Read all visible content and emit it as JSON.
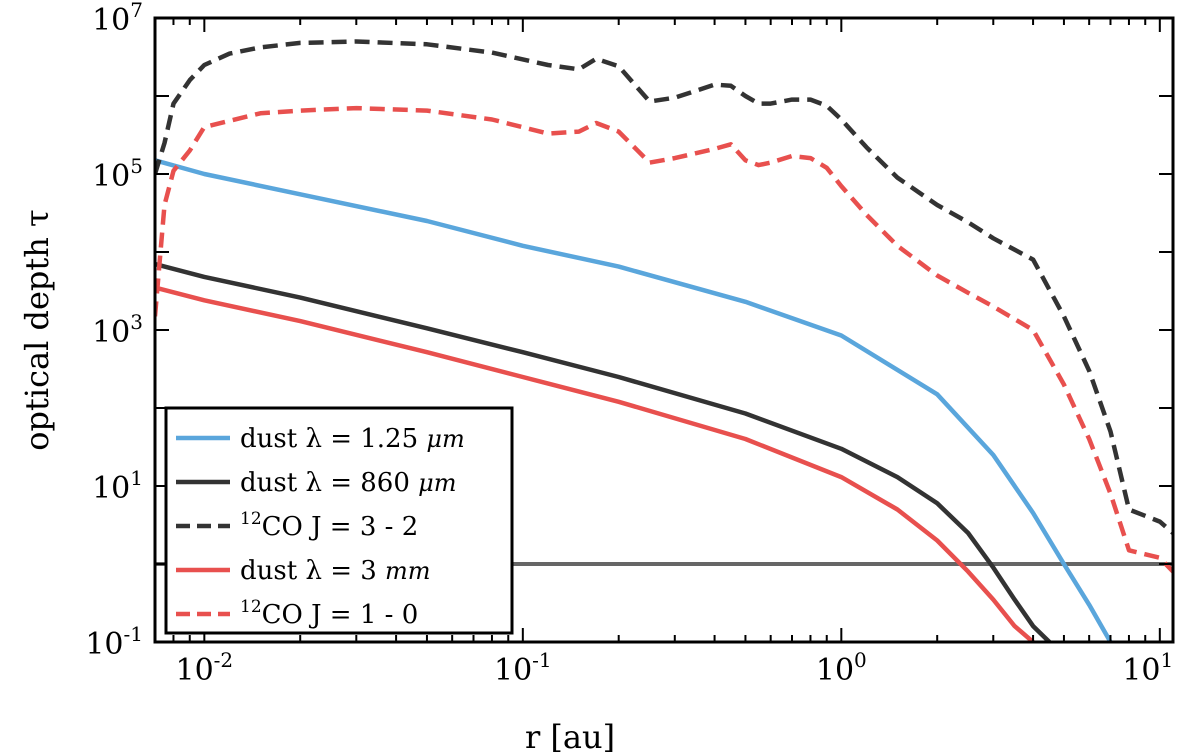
{
  "chart_data": {
    "type": "line",
    "title": "",
    "xlabel": "r [au]",
    "ylabel": "optical depth τ",
    "xscale": "log",
    "yscale": "log",
    "xlim": [
      0.007,
      11
    ],
    "ylim": [
      0.1,
      10000000
    ],
    "grid": false,
    "legend_location": "lower-left",
    "x_ticks": [
      {
        "value": 0.01,
        "base": "10",
        "exp": "-2"
      },
      {
        "value": 0.1,
        "base": "10",
        "exp": "-1"
      },
      {
        "value": 1,
        "base": "10",
        "exp": "0"
      },
      {
        "value": 10,
        "base": "10",
        "exp": "1"
      }
    ],
    "y_ticks": [
      {
        "value": 0.1,
        "base": "10",
        "exp": "-1"
      },
      {
        "value": 10,
        "base": "10",
        "exp": "1"
      },
      {
        "value": 1000,
        "base": "10",
        "exp": "3"
      },
      {
        "value": 100000,
        "base": "10",
        "exp": "5"
      },
      {
        "value": 10000000,
        "base": "10",
        "exp": "7"
      }
    ],
    "reference_line": {
      "name": "tau = 1",
      "y": 1,
      "color": "#666666"
    },
    "series": [
      {
        "name": "dust 1.25 um",
        "legend": {
          "prefix": "dust λ = 1.25 ",
          "unit": "μm"
        },
        "color": "#5aa6dc",
        "dash": false,
        "x": [
          0.007,
          0.01,
          0.02,
          0.05,
          0.1,
          0.2,
          0.5,
          1,
          2,
          3,
          4,
          5,
          6,
          7
        ],
        "y": [
          150000,
          100000,
          55000,
          25000,
          12000,
          6500,
          2300,
          850,
          150,
          25,
          4.5,
          1.0,
          0.3,
          0.1
        ]
      },
      {
        "name": "dust 860 um",
        "legend": {
          "prefix": "dust λ = 860 ",
          "unit": "μm"
        },
        "color": "#333333",
        "dash": false,
        "x": [
          0.007,
          0.01,
          0.02,
          0.05,
          0.1,
          0.2,
          0.5,
          1,
          1.5,
          2,
          2.5,
          3,
          3.5,
          4,
          4.5
        ],
        "y": [
          7000,
          4800,
          2600,
          1050,
          520,
          250,
          85,
          30,
          13,
          6,
          2.5,
          0.9,
          0.35,
          0.16,
          0.1
        ]
      },
      {
        "name": "12CO J = 3-2",
        "legend": {
          "pre": "",
          "sup": "12",
          "post": "CO J = 3 - 2"
        },
        "color": "#333333",
        "dash": true,
        "x": [
          0.007,
          0.0075,
          0.008,
          0.009,
          0.01,
          0.012,
          0.015,
          0.02,
          0.03,
          0.05,
          0.08,
          0.12,
          0.15,
          0.17,
          0.2,
          0.25,
          0.3,
          0.4,
          0.45,
          0.5,
          0.55,
          0.6,
          0.7,
          0.8,
          0.9,
          1.0,
          1.2,
          1.5,
          2,
          2.5,
          3,
          4,
          5,
          6,
          7,
          8,
          10,
          11
        ],
        "y": [
          100000,
          250000,
          800000,
          1600000,
          2500000,
          3500000,
          4200000,
          4800000,
          5000000,
          4600000,
          3600000,
          2500000,
          2200000,
          3000000,
          2400000,
          850000,
          950000,
          1400000,
          1350000,
          1000000,
          800000,
          800000,
          900000,
          900000,
          750000,
          500000,
          220000,
          90000,
          40000,
          24000,
          15000,
          8000,
          1500,
          300,
          50,
          5,
          3.5,
          2.5
        ]
      },
      {
        "name": "dust 3 mm",
        "legend": {
          "prefix": "dust λ = 3 ",
          "unit": "mm"
        },
        "color": "#e8504e",
        "dash": false,
        "x": [
          0.007,
          0.01,
          0.02,
          0.05,
          0.1,
          0.2,
          0.5,
          1,
          1.5,
          2,
          2.5,
          3,
          3.5,
          4
        ],
        "y": [
          3500,
          2400,
          1300,
          520,
          250,
          120,
          40,
          13,
          5,
          2,
          0.8,
          0.35,
          0.16,
          0.1
        ]
      },
      {
        "name": "12CO J = 1-0",
        "legend": {
          "pre": "",
          "sup": "12",
          "post": "CO J = 1 - 0"
        },
        "color": "#e8504e",
        "dash": true,
        "x": [
          0.007,
          0.0075,
          0.008,
          0.009,
          0.01,
          0.015,
          0.02,
          0.03,
          0.05,
          0.08,
          0.12,
          0.15,
          0.17,
          0.2,
          0.25,
          0.3,
          0.4,
          0.45,
          0.5,
          0.55,
          0.6,
          0.7,
          0.8,
          0.9,
          1.0,
          1.2,
          1.5,
          2,
          2.5,
          3,
          4,
          5,
          6,
          7,
          8,
          10,
          11
        ],
        "y": [
          1500,
          40000,
          110000,
          200000,
          400000,
          600000,
          650000,
          700000,
          650000,
          500000,
          330000,
          350000,
          450000,
          350000,
          140000,
          160000,
          210000,
          240000,
          150000,
          130000,
          140000,
          170000,
          160000,
          120000,
          70000,
          30000,
          12000,
          5000,
          3000,
          2000,
          1000,
          200,
          40,
          8,
          1.5,
          1.2,
          0.8
        ]
      }
    ]
  }
}
